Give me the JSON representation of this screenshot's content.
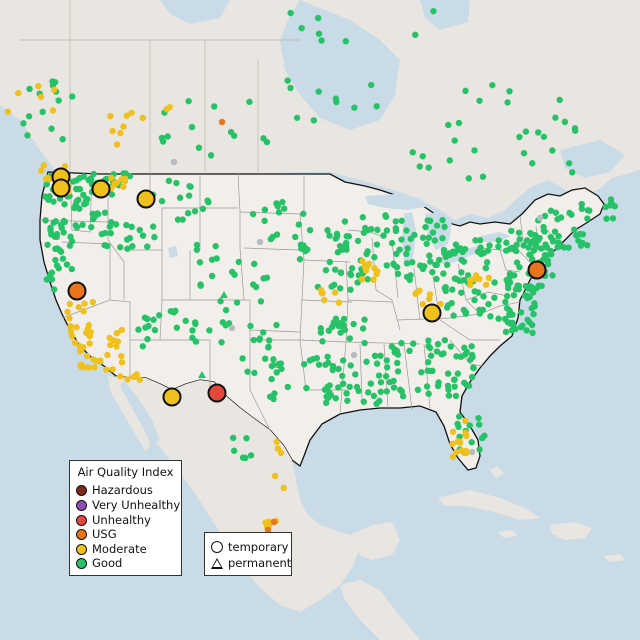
{
  "colors": {
    "Hazardous": "#7e2a1e",
    "Very Unhealthy": "#8e4fb3",
    "Unhealthy": "#e5473b",
    "USG": "#e8751c",
    "Moderate": "#f0c01c",
    "Good": "#27c268",
    "No data": "#b8bcbe"
  },
  "legend": {
    "title": "Air Quality Index",
    "items": [
      {
        "key": "Hazardous",
        "label": "Hazardous"
      },
      {
        "key": "Very Unhealthy",
        "label": "Very Unhealthy"
      },
      {
        "key": "Unhealthy",
        "label": "Unhealthy"
      },
      {
        "key": "USG",
        "label": "USG"
      },
      {
        "key": "Moderate",
        "label": "Moderate"
      },
      {
        "key": "Good",
        "label": "Good"
      }
    ]
  },
  "monitor_types": {
    "temporary": "temporary",
    "permanent": "permanent"
  }
}
